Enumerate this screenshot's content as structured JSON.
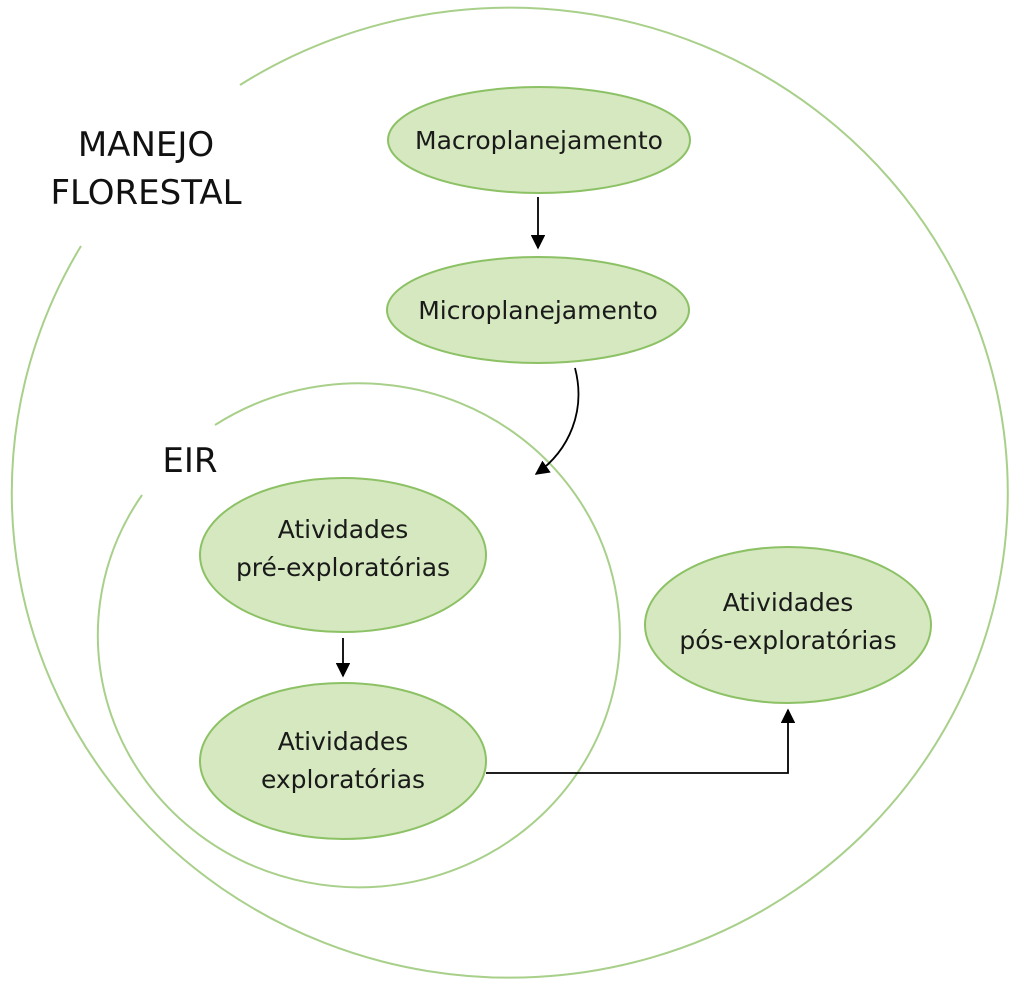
{
  "regions": {
    "outer": {
      "label_line1": "MANEJO",
      "label_line2": "FLORESTAL"
    },
    "inner": {
      "label": "EIR"
    }
  },
  "nodes": {
    "macro": {
      "line1": "Macroplanejamento"
    },
    "micro": {
      "line1": "Microplanejamento"
    },
    "pre": {
      "line1": "Atividades",
      "line2": "pré-exploratórias"
    },
    "expl": {
      "line1": "Atividades",
      "line2": "exploratórias"
    },
    "pos": {
      "line1": "Atividades",
      "line2": "pós-exploratórias"
    }
  },
  "colors": {
    "node_fill": "#d5e8bf",
    "node_stroke": "#8cc165",
    "circle_stroke": "#a8d08a",
    "arrow": "#000000"
  }
}
